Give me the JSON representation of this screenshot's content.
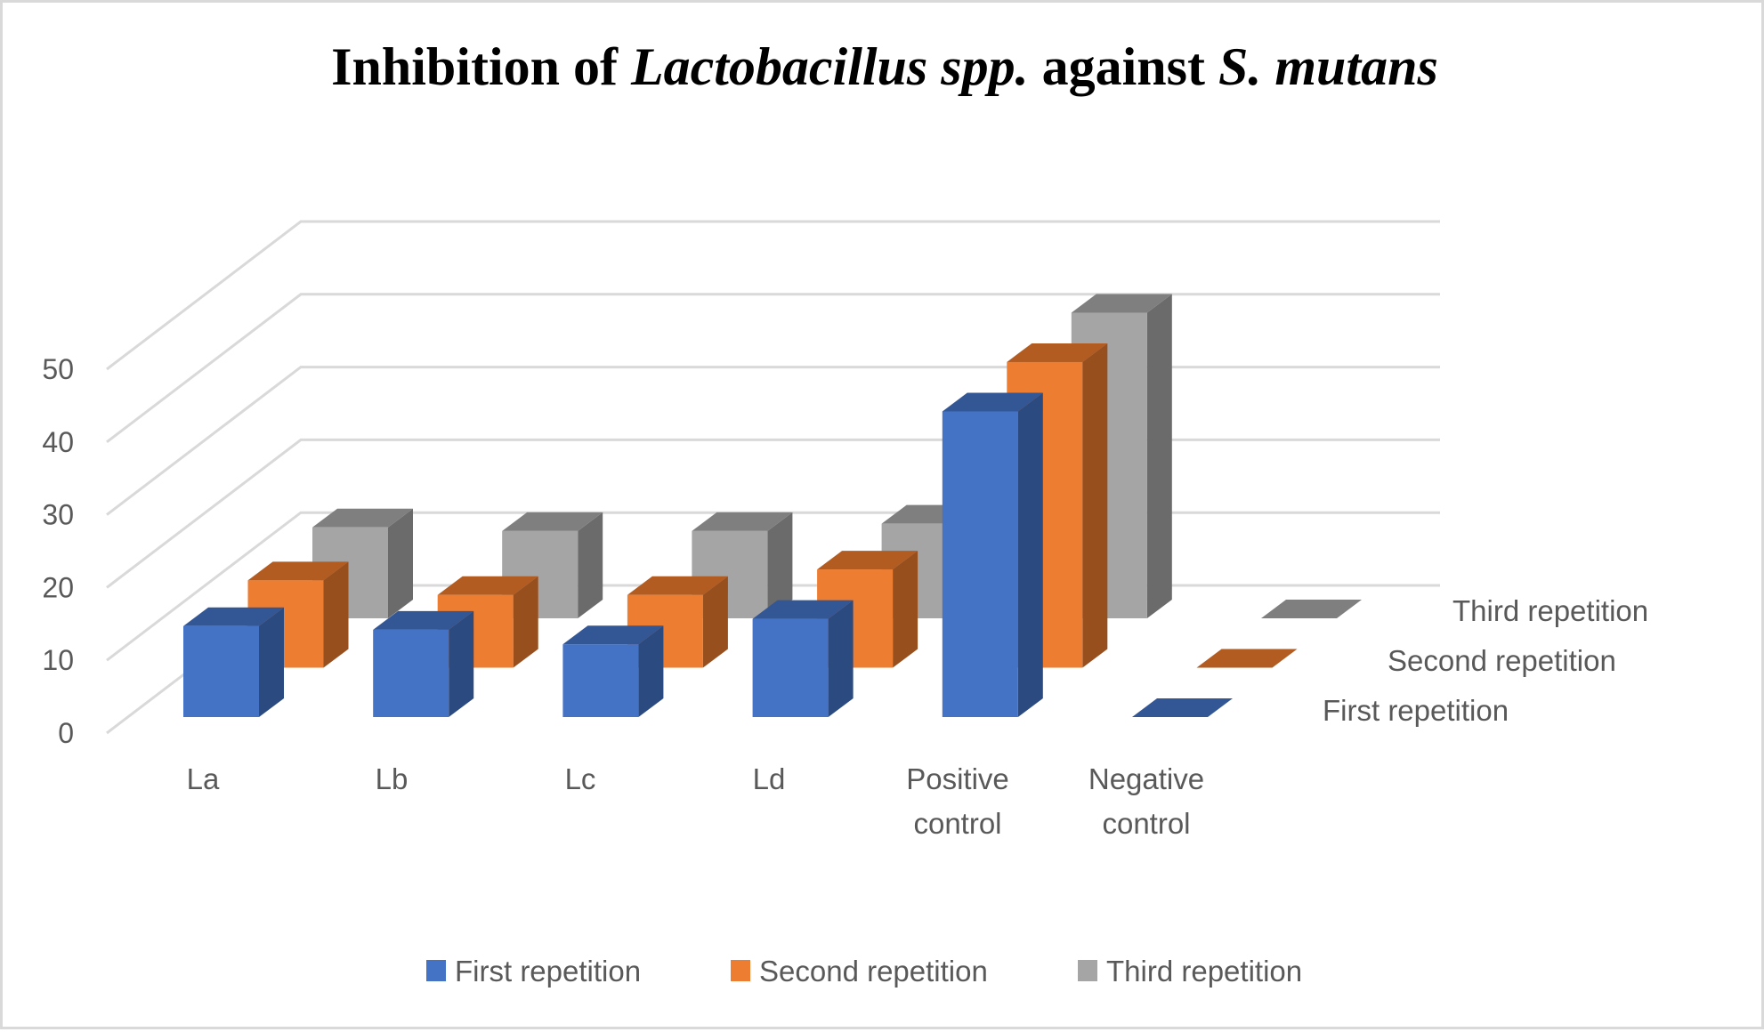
{
  "chart_data": {
    "type": "bar",
    "subtype": "3d-column",
    "title": {
      "segments": [
        {
          "text": "Inhibition of ",
          "italic": false
        },
        {
          "text": "Lactobacillus spp.",
          "italic": true
        },
        {
          "text": " against ",
          "italic": false
        },
        {
          "text": "S. mutans",
          "italic": true
        }
      ],
      "full": "Inhibition of Lactobacillus spp. against S. mutans"
    },
    "xlabel": "",
    "ylabel": "",
    "categories": [
      [
        "La"
      ],
      [
        "Lb"
      ],
      [
        "Lc"
      ],
      [
        "Ld"
      ],
      [
        "Positive",
        "control"
      ],
      [
        "Negative",
        "control"
      ]
    ],
    "category_names": [
      "La",
      "Lb",
      "Lc",
      "Ld",
      "Positive control",
      "Negative control"
    ],
    "series": [
      {
        "name": "First repetition",
        "color": "#4472c4",
        "top_color": "#335694",
        "side_color": "#2b4a80",
        "values": [
          12.5,
          12,
          10,
          13.5,
          42,
          0
        ]
      },
      {
        "name": "Second repetition",
        "color": "#ed7d31",
        "top_color": "#b35c22",
        "side_color": "#984f1e",
        "values": [
          12,
          10,
          10,
          13.5,
          42,
          0
        ]
      },
      {
        "name": "Third repetition",
        "color": "#a5a5a5",
        "top_color": "#7f7f7f",
        "side_color": "#6b6b6b",
        "values": [
          12.5,
          12,
          12,
          13,
          42,
          0
        ]
      }
    ],
    "ylim": [
      0,
      50
    ],
    "yticks": [
      0,
      10,
      20,
      30,
      40,
      50
    ],
    "ytick_labels": [
      "0",
      "10",
      "20",
      "30",
      "40",
      "50"
    ],
    "depth_axis_labels": [
      "First repetition",
      "Second repetition",
      "Third repetition"
    ],
    "grid": true,
    "legend": {
      "placement": "bottom",
      "entries": [
        "First repetition",
        "Second repetition",
        "Third repetition"
      ]
    }
  }
}
